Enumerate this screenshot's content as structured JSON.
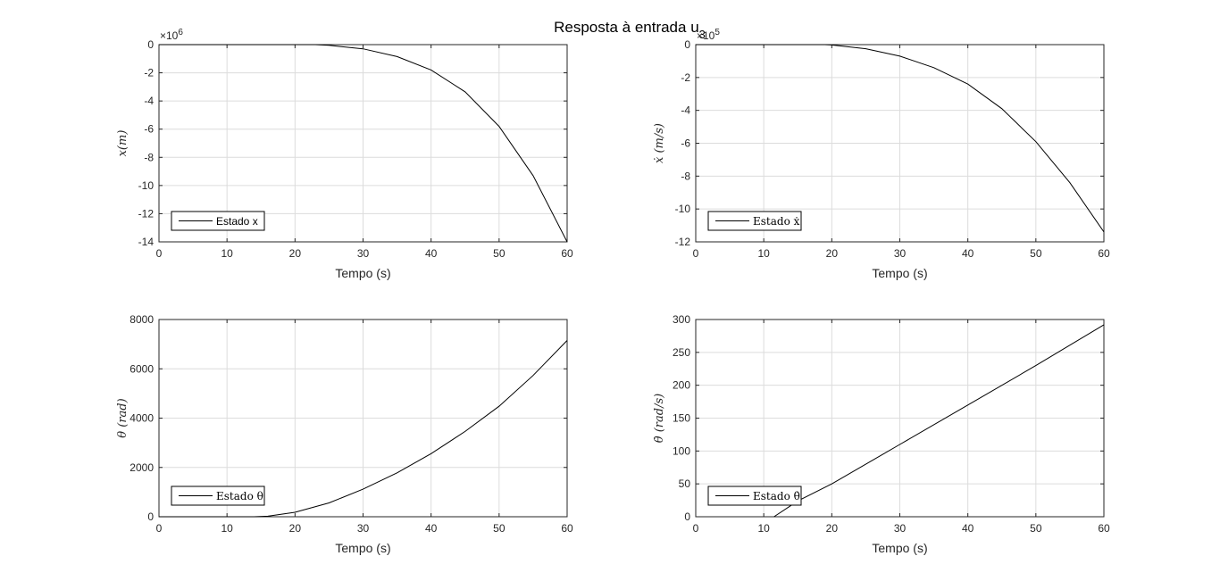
{
  "figure": {
    "title": "Resposta à entrada u",
    "title_subscript": "3"
  },
  "chart_data": [
    {
      "type": "line",
      "name": "x",
      "xlabel": "Tempo (s)",
      "ylabel": "x(m)",
      "xlim": [
        0,
        60
      ],
      "ylim": [
        -14,
        0
      ],
      "xticks": [
        0,
        10,
        20,
        30,
        40,
        50,
        60
      ],
      "yticks": [
        0,
        -2,
        -4,
        -6,
        -8,
        -10,
        -12,
        -14
      ],
      "y_exponent_base": "×10",
      "y_exponent": "6",
      "grid": true,
      "legend": "bottom-left",
      "series": [
        {
          "name": "Estado x",
          "x": [
            0,
            23,
            25,
            30,
            35,
            40,
            45,
            50,
            55,
            60
          ],
          "y": [
            0,
            0,
            -0.05,
            -0.3,
            -0.85,
            -1.8,
            -3.35,
            -5.8,
            -9.3,
            -14.0
          ]
        }
      ]
    },
    {
      "type": "line",
      "name": "x_dot",
      "xlabel": "Tempo (s)",
      "ylabel": "ẋ (m/s)",
      "xlim": [
        0,
        60
      ],
      "ylim": [
        -12,
        0
      ],
      "xticks": [
        0,
        10,
        20,
        30,
        40,
        50,
        60
      ],
      "yticks": [
        0,
        -2,
        -4,
        -6,
        -8,
        -10,
        -12
      ],
      "y_exponent_base": "×10",
      "y_exponent": "5",
      "grid": true,
      "legend": "bottom-left",
      "series": [
        {
          "name": "Estado ẋ",
          "x": [
            0,
            19,
            20,
            25,
            30,
            35,
            40,
            45,
            50,
            55,
            60
          ],
          "y": [
            0,
            0,
            -0.02,
            -0.25,
            -0.7,
            -1.4,
            -2.4,
            -3.9,
            -5.9,
            -8.4,
            -11.4
          ]
        }
      ]
    },
    {
      "type": "line",
      "name": "theta",
      "xlabel": "Tempo (s)",
      "ylabel": "θ (rad)",
      "xlim": [
        0,
        60
      ],
      "ylim": [
        0,
        8000
      ],
      "xticks": [
        0,
        10,
        20,
        30,
        40,
        50,
        60
      ],
      "yticks": [
        0,
        2000,
        4000,
        6000,
        8000
      ],
      "grid": true,
      "legend": "bottom-left",
      "series": [
        {
          "name": "Estado θ",
          "x": [
            0,
            14,
            16,
            20,
            25,
            30,
            35,
            40,
            45,
            50,
            55,
            60
          ],
          "y": [
            0,
            0,
            20,
            180,
            560,
            1120,
            1780,
            2560,
            3460,
            4480,
            5730,
            7150
          ]
        }
      ]
    },
    {
      "type": "line",
      "name": "theta_dot",
      "xlabel": "Tempo (s)",
      "ylabel": "θ̇ (rad/s)",
      "xlim": [
        0,
        60
      ],
      "ylim": [
        0,
        300
      ],
      "xticks": [
        0,
        10,
        20,
        30,
        40,
        50,
        60
      ],
      "yticks": [
        0,
        50,
        100,
        150,
        200,
        250,
        300
      ],
      "grid": true,
      "legend": "bottom-left",
      "series": [
        {
          "name": "Estado θ̇",
          "x": [
            11.5,
            15,
            20,
            30,
            40,
            50,
            60
          ],
          "y": [
            0,
            24,
            50,
            110,
            170,
            230,
            292
          ]
        }
      ]
    }
  ]
}
